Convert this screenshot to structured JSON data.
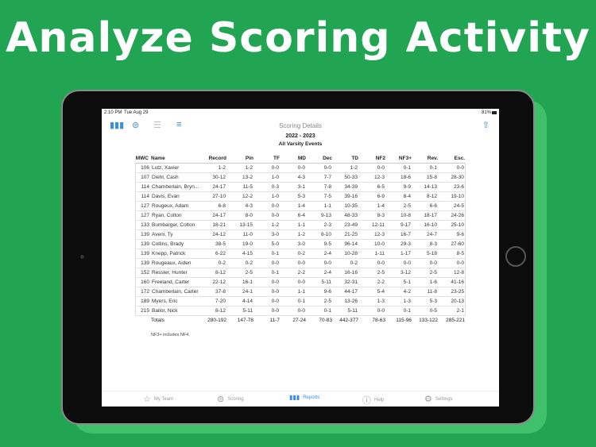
{
  "headline": "Analyze Scoring Activity",
  "status": {
    "time": "2:10 PM",
    "date": "Tue Aug 29",
    "battery": "81%"
  },
  "toolbar": {
    "icons": [
      "bar-chart-icon",
      "filter-icon",
      "list-icon",
      "sliders-icon",
      "share-icon"
    ]
  },
  "header": {
    "title": "Scoring Details",
    "season": "2022 - 2023",
    "events": "All Varsity Events"
  },
  "table": {
    "columns": [
      "MWC",
      "Name",
      "Record",
      "Pin",
      "TF",
      "MD",
      "Dec",
      "TD",
      "NF2",
      "NF3+",
      "Rev.",
      "Esc."
    ],
    "rows": [
      [
        "106",
        "Lutz, Xavier",
        "1-2",
        "1-2",
        "0-0",
        "0-0",
        "0-0",
        "1-2",
        "0-0",
        "0-1",
        "0-1",
        "0-0"
      ],
      [
        "107",
        "Diehl, Cash",
        "30-12",
        "13-2",
        "1-0",
        "4-3",
        "7-7",
        "50-33",
        "12-3",
        "18-6",
        "15-8",
        "28-30"
      ],
      [
        "114",
        "Chamberlain, Bryn...",
        "24-17",
        "11-5",
        "0-3",
        "3-1",
        "7-8",
        "34-39",
        "6-5",
        "9-9",
        "14-13",
        "23-6"
      ],
      [
        "114",
        "Davis, Evan",
        "27-10",
        "12-2",
        "1-0",
        "5-3",
        "7-5",
        "39-16",
        "6-9",
        "8-4",
        "8-12",
        "19-10"
      ],
      [
        "127",
        "Rougeux, Adam",
        "6-8",
        "4-3",
        "0-0",
        "1-4",
        "1-1",
        "10-35",
        "1-4",
        "2-5",
        "6-6",
        "24-5"
      ],
      [
        "127",
        "Ryan, Colton",
        "24-17",
        "8-0",
        "0-0",
        "6-4",
        "9-13",
        "48-33",
        "8-3",
        "10-8",
        "18-17",
        "24-26"
      ],
      [
        "133",
        "Bumbarger, Colton",
        "18-21",
        "13-15",
        "1-2",
        "1-1",
        "2-3",
        "23-49",
        "12-11",
        "9-17",
        "16-10",
        "25-10"
      ],
      [
        "139",
        "Aveni, Ty",
        "24-12",
        "11-0",
        "3-0",
        "1-2",
        "8-10",
        "21-25",
        "12-3",
        "16-7",
        "24-7",
        "9-6"
      ],
      [
        "139",
        "Collins, Brady",
        "38-5",
        "19-0",
        "5-0",
        "3-0",
        "9-5",
        "96-14",
        "10-0",
        "29-3",
        "8-3",
        "27-60"
      ],
      [
        "139",
        "Knepp, Patrick",
        "6-22",
        "4-15",
        "0-1",
        "0-2",
        "2-4",
        "10-28",
        "1-11",
        "1-17",
        "5-18",
        "8-5"
      ],
      [
        "139",
        "Rougeaux, Aiden",
        "0-2",
        "0-2",
        "0-0",
        "0-0",
        "0-0",
        "0-2",
        "0-0",
        "0-0",
        "0-0",
        "0-0"
      ],
      [
        "152",
        "Ressler, Hunter",
        "8-12",
        "2-5",
        "0-1",
        "2-2",
        "2-4",
        "16-16",
        "2-5",
        "3-12",
        "2-5",
        "12-8"
      ],
      [
        "160",
        "Freeland, Carter",
        "22-12",
        "16-1",
        "0-0",
        "0-0",
        "5-11",
        "32-31",
        "2-2",
        "5-1",
        "1-6",
        "41-16"
      ],
      [
        "172",
        "Chamberlain, Carter",
        "37-8",
        "24-1",
        "0-0",
        "1-1",
        "9-6",
        "44-17",
        "5-4",
        "4-2",
        "11-8",
        "23-25"
      ],
      [
        "189",
        "Myers, Eric",
        "7-20",
        "4-14",
        "0-0",
        "0-1",
        "2-5",
        "13-26",
        "1-3",
        "1-3",
        "5-3",
        "20-13"
      ],
      [
        "215",
        "Bailor, Nick",
        "8-12",
        "5-11",
        "0-0",
        "0-0",
        "0-1",
        "5-11",
        "0-0",
        "0-1",
        "0-5",
        "2-1"
      ]
    ],
    "totals": [
      "",
      "Totals",
      "280-192",
      "147-78",
      "11-7",
      "27-24",
      "70-83",
      "442-377",
      "78-63",
      "115-96",
      "133-122",
      "285-221"
    ]
  },
  "note": "NF3+ includes NF4.",
  "tabbar": [
    {
      "label": "My Team",
      "icon": "star-icon",
      "active": false
    },
    {
      "label": "Scoring",
      "icon": "equals-circle-icon",
      "active": false
    },
    {
      "label": "Reports",
      "icon": "bar-chart-icon",
      "active": true
    },
    {
      "label": "Help",
      "icon": "question-circle-icon",
      "active": false
    },
    {
      "label": "Settings",
      "icon": "gear-icon",
      "active": false
    }
  ],
  "colors": {
    "background": "#22a552",
    "accent": "#3a8ee6"
  }
}
